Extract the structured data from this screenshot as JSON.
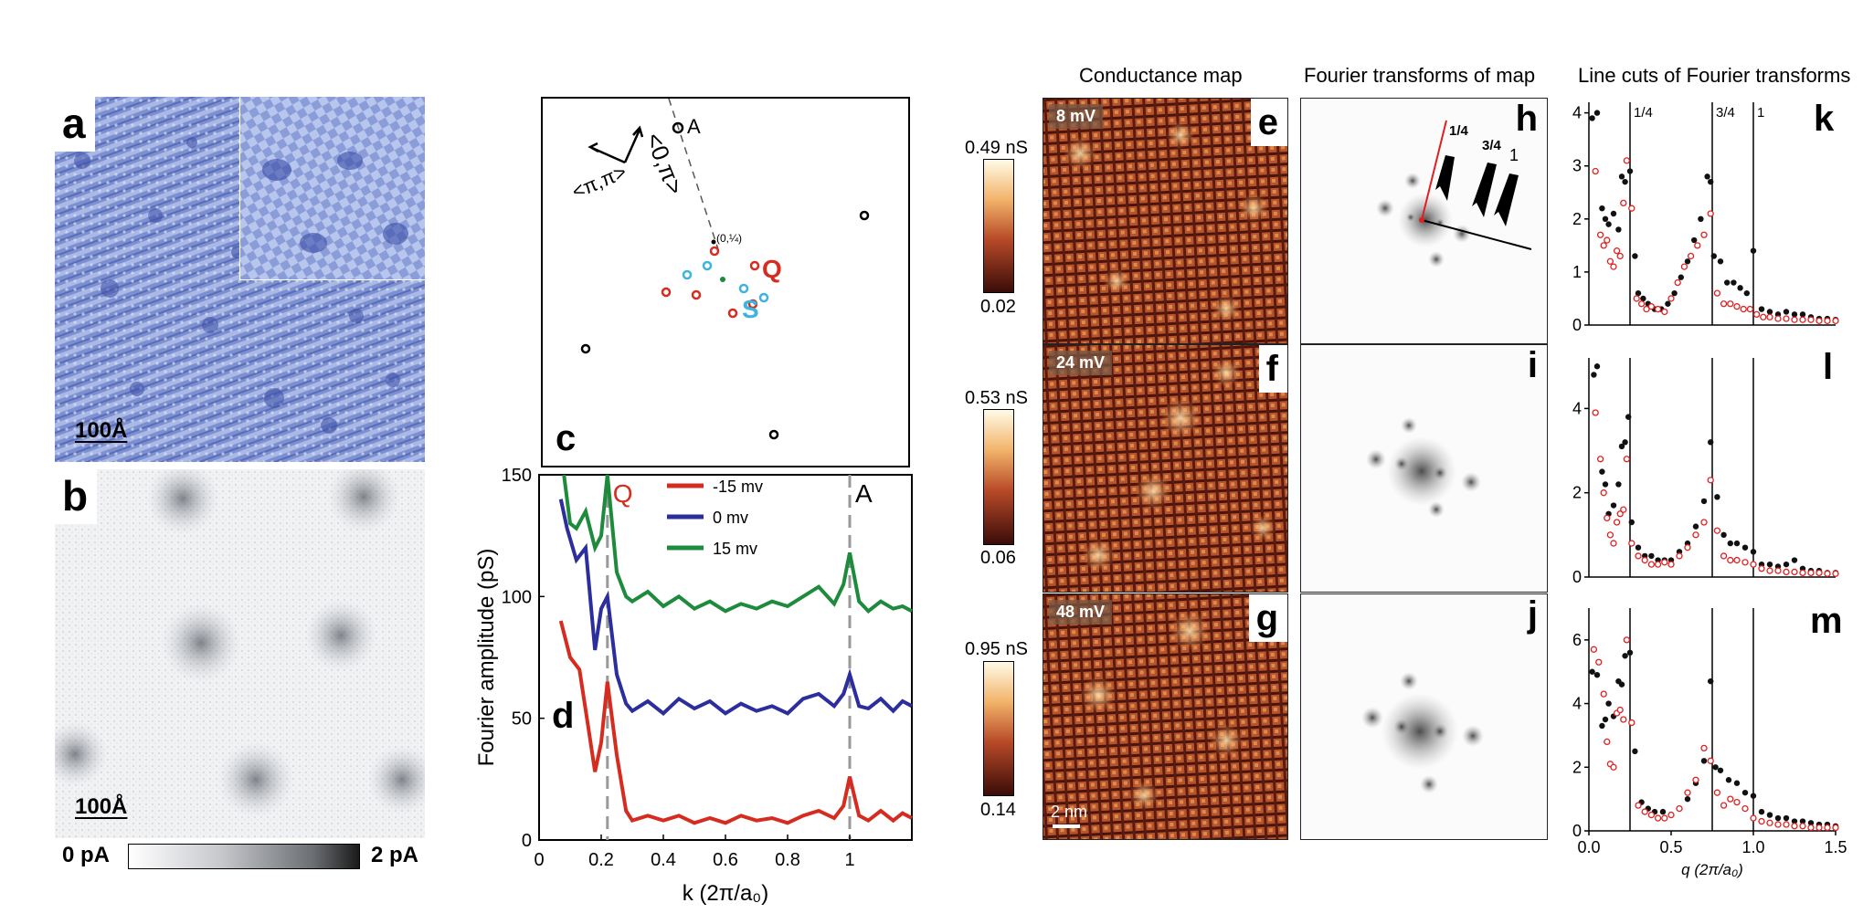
{
  "panels": {
    "a": {
      "label": "a",
      "scalebar": "100Å"
    },
    "b": {
      "label": "b",
      "scalebar": "100Å",
      "colorbar_min": "0 pA",
      "colorbar_max": "2 pA"
    },
    "c": {
      "label": "c",
      "point_A": "A",
      "point_q": "(0,¼)",
      "Q": "Q",
      "S": "S",
      "dir1": "<0,π>",
      "dir2": "<π,π>"
    },
    "d": {
      "label": "d",
      "marker_Q": "Q",
      "marker_A": "A"
    },
    "e": {
      "label": "e",
      "energy": "8 mV",
      "scalebar": ""
    },
    "f": {
      "label": "f",
      "energy": "24 mV"
    },
    "g": {
      "label": "g",
      "energy": "48 mV",
      "scalebar": "2 nm"
    },
    "h": {
      "label": "h",
      "q1": "1",
      "q34": "3/4",
      "q14": "1/4"
    },
    "i": {
      "label": "i"
    },
    "j": {
      "label": "j"
    },
    "k": {
      "label": "k"
    },
    "l": {
      "label": "l"
    },
    "m": {
      "label": "m"
    }
  },
  "titles": {
    "conductance": "Conductance map",
    "fourier": "Fourier transforms of map",
    "linecuts": "Line cuts of Fourier transforms"
  },
  "colorbars": [
    {
      "max": "0.49 nS",
      "min": "0.02"
    },
    {
      "max": "0.53 nS",
      "min": "0.06"
    },
    {
      "max": "0.95 nS",
      "min": "0.14"
    }
  ],
  "chart_data": [
    {
      "type": "line",
      "panel": "d",
      "xlabel": "k (2π/a₀)",
      "ylabel": "Fourier amplitude (pS)",
      "xlim": [
        0,
        1.2
      ],
      "ylim": [
        0,
        150
      ],
      "xticks": [
        "0",
        "0.2",
        "0.4",
        "0.6",
        "0.8",
        "1"
      ],
      "xtick_values": [
        0,
        0.2,
        0.4,
        0.6,
        0.8,
        1.0
      ],
      "yticks": [
        "0",
        "50",
        "100",
        "150"
      ],
      "ytick_values": [
        0,
        50,
        100,
        150
      ],
      "markers": [
        {
          "x": 0.22,
          "label": "Q"
        },
        {
          "x": 1.0,
          "label": "A"
        }
      ],
      "series": [
        {
          "name": "-15 mv",
          "color": "#d62c20",
          "x": [
            0.07,
            0.1,
            0.13,
            0.16,
            0.18,
            0.2,
            0.22,
            0.25,
            0.28,
            0.3,
            0.35,
            0.4,
            0.45,
            0.5,
            0.55,
            0.6,
            0.65,
            0.7,
            0.75,
            0.8,
            0.85,
            0.9,
            0.95,
            0.98,
            1.0,
            1.03,
            1.06,
            1.1,
            1.14,
            1.17,
            1.2
          ],
          "y": [
            90,
            75,
            70,
            45,
            28,
            40,
            65,
            35,
            12,
            8,
            10,
            8,
            10,
            7,
            9,
            7,
            10,
            8,
            9,
            7,
            10,
            12,
            9,
            14,
            26,
            10,
            8,
            12,
            8,
            11,
            9
          ]
        },
        {
          "name": "0 mv",
          "color": "#2b2e9c",
          "x": [
            0.07,
            0.09,
            0.12,
            0.15,
            0.18,
            0.2,
            0.22,
            0.25,
            0.28,
            0.3,
            0.35,
            0.4,
            0.45,
            0.5,
            0.55,
            0.6,
            0.65,
            0.7,
            0.75,
            0.8,
            0.85,
            0.9,
            0.95,
            0.98,
            1.0,
            1.03,
            1.06,
            1.1,
            1.14,
            1.17,
            1.2
          ],
          "y": [
            140,
            128,
            115,
            120,
            78,
            95,
            100,
            68,
            56,
            53,
            57,
            52,
            58,
            54,
            57,
            52,
            56,
            53,
            55,
            52,
            58,
            60,
            55,
            60,
            68,
            55,
            54,
            58,
            53,
            57,
            55
          ]
        },
        {
          "name": "15 mv",
          "color": "#1e8a3c",
          "x": [
            0.08,
            0.1,
            0.12,
            0.15,
            0.18,
            0.2,
            0.22,
            0.25,
            0.28,
            0.3,
            0.35,
            0.4,
            0.45,
            0.5,
            0.55,
            0.6,
            0.65,
            0.7,
            0.75,
            0.8,
            0.85,
            0.9,
            0.95,
            0.98,
            1.0,
            1.03,
            1.06,
            1.1,
            1.14,
            1.17,
            1.2
          ],
          "y": [
            150,
            130,
            128,
            135,
            120,
            125,
            150,
            110,
            100,
            98,
            102,
            96,
            100,
            95,
            98,
            94,
            97,
            95,
            98,
            96,
            100,
            104,
            97,
            105,
            118,
            98,
            94,
            98,
            95,
            96,
            94
          ]
        }
      ]
    },
    {
      "type": "scatter",
      "panel": "k",
      "xlim": [
        0,
        1.5
      ],
      "ylim": [
        0,
        4.2
      ],
      "yticks": [
        "0",
        "1",
        "2",
        "3",
        "4"
      ],
      "ytick_values": [
        0,
        1,
        2,
        3,
        4
      ],
      "vlines": [
        {
          "x": 0.25,
          "label": "1/4"
        },
        {
          "x": 0.75,
          "label": "3/4"
        },
        {
          "x": 1.0,
          "label": "1"
        }
      ],
      "series": [
        {
          "name": "black",
          "color": "#111111",
          "x": [
            0.02,
            0.05,
            0.08,
            0.1,
            0.12,
            0.15,
            0.18,
            0.2,
            0.22,
            0.25,
            0.28,
            0.3,
            0.33,
            0.36,
            0.4,
            0.44,
            0.48,
            0.52,
            0.56,
            0.6,
            0.64,
            0.68,
            0.72,
            0.74,
            0.76,
            0.8,
            0.84,
            0.88,
            0.92,
            0.96,
            1.0,
            1.05,
            1.1,
            1.15,
            1.2,
            1.25,
            1.3,
            1.35,
            1.4,
            1.45,
            1.5
          ],
          "y": [
            3.9,
            4.0,
            2.2,
            2.0,
            1.9,
            2.1,
            1.8,
            2.8,
            2.7,
            2.9,
            1.3,
            0.6,
            0.5,
            0.4,
            0.3,
            0.3,
            0.4,
            0.6,
            0.9,
            1.2,
            1.6,
            2.0,
            2.8,
            2.7,
            1.3,
            1.2,
            0.8,
            0.8,
            0.7,
            0.6,
            1.4,
            0.3,
            0.25,
            0.2,
            0.25,
            0.2,
            0.2,
            0.15,
            0.12,
            0.12,
            0.1
          ]
        },
        {
          "name": "red",
          "color": "#e02020",
          "x": [
            0.04,
            0.07,
            0.09,
            0.11,
            0.13,
            0.15,
            0.17,
            0.19,
            0.21,
            0.23,
            0.26,
            0.29,
            0.32,
            0.35,
            0.38,
            0.42,
            0.46,
            0.5,
            0.54,
            0.58,
            0.62,
            0.66,
            0.7,
            0.74,
            0.78,
            0.82,
            0.86,
            0.9,
            0.94,
            0.98,
            1.02,
            1.06,
            1.1,
            1.15,
            1.2,
            1.25,
            1.3,
            1.35,
            1.4,
            1.45,
            1.5
          ],
          "y": [
            2.9,
            1.7,
            1.5,
            1.6,
            1.2,
            1.1,
            1.4,
            1.3,
            2.3,
            3.1,
            2.2,
            0.5,
            0.4,
            0.3,
            0.35,
            0.3,
            0.25,
            0.5,
            0.8,
            1.1,
            1.3,
            1.5,
            1.7,
            2.1,
            0.6,
            0.4,
            0.4,
            0.35,
            0.3,
            0.3,
            0.2,
            0.15,
            0.15,
            0.12,
            0.12,
            0.1,
            0.1,
            0.1,
            0.08,
            0.08,
            0.08
          ]
        }
      ]
    },
    {
      "type": "scatter",
      "panel": "l",
      "xlim": [
        0,
        1.5
      ],
      "ylim": [
        0,
        5.2
      ],
      "yticks": [
        "0",
        "2",
        "4"
      ],
      "ytick_values": [
        0,
        2,
        4
      ],
      "vlines": [
        {
          "x": 0.25
        },
        {
          "x": 0.75
        },
        {
          "x": 1.0
        }
      ],
      "series": [
        {
          "name": "black",
          "color": "#111111",
          "x": [
            0.03,
            0.05,
            0.08,
            0.1,
            0.12,
            0.15,
            0.18,
            0.2,
            0.22,
            0.24,
            0.26,
            0.3,
            0.34,
            0.38,
            0.42,
            0.46,
            0.5,
            0.55,
            0.6,
            0.65,
            0.7,
            0.74,
            0.78,
            0.82,
            0.86,
            0.9,
            0.95,
            1.0,
            1.05,
            1.1,
            1.15,
            1.2,
            1.25,
            1.3,
            1.35,
            1.4,
            1.45,
            1.5
          ],
          "y": [
            4.8,
            5.0,
            2.5,
            2.2,
            1.5,
            1.7,
            2.2,
            3.1,
            3.2,
            3.8,
            1.3,
            0.7,
            0.5,
            0.5,
            0.4,
            0.4,
            0.4,
            0.6,
            0.8,
            1.2,
            1.8,
            3.2,
            1.9,
            1.0,
            0.8,
            0.8,
            0.7,
            0.6,
            0.3,
            0.3,
            0.25,
            0.3,
            0.4,
            0.2,
            0.15,
            0.15,
            0.1,
            0.1
          ]
        },
        {
          "name": "red",
          "color": "#e02020",
          "x": [
            0.04,
            0.07,
            0.09,
            0.11,
            0.13,
            0.15,
            0.17,
            0.19,
            0.21,
            0.23,
            0.26,
            0.3,
            0.34,
            0.38,
            0.42,
            0.46,
            0.5,
            0.55,
            0.6,
            0.65,
            0.7,
            0.74,
            0.78,
            0.82,
            0.86,
            0.9,
            0.95,
            1.0,
            1.05,
            1.1,
            1.15,
            1.2,
            1.25,
            1.3,
            1.35,
            1.4,
            1.45,
            1.5
          ],
          "y": [
            3.9,
            2.8,
            2.0,
            1.4,
            1.0,
            0.8,
            1.3,
            1.5,
            1.6,
            2.8,
            0.8,
            0.5,
            0.4,
            0.3,
            0.3,
            0.35,
            0.3,
            0.5,
            0.7,
            1.0,
            1.3,
            2.3,
            1.1,
            0.5,
            0.4,
            0.4,
            0.35,
            0.3,
            0.2,
            0.15,
            0.15,
            0.12,
            0.12,
            0.1,
            0.1,
            0.1,
            0.08,
            0.08
          ]
        }
      ]
    },
    {
      "type": "scatter",
      "panel": "m",
      "xlim": [
        0,
        1.5
      ],
      "ylim": [
        0,
        7
      ],
      "xlabel": "q (2π/a₀)",
      "xticks": [
        "0.0",
        "0.5",
        "1.0",
        "1.5"
      ],
      "xtick_values": [
        0,
        0.5,
        1.0,
        1.5
      ],
      "yticks": [
        "0",
        "2",
        "4",
        "6"
      ],
      "ytick_values": [
        0,
        2,
        4,
        6
      ],
      "vlines": [
        {
          "x": 0.25
        },
        {
          "x": 0.75
        },
        {
          "x": 1.0
        }
      ],
      "series": [
        {
          "name": "black",
          "color": "#111111",
          "x": [
            0.02,
            0.05,
            0.08,
            0.1,
            0.12,
            0.15,
            0.18,
            0.2,
            0.22,
            0.25,
            0.28,
            0.32,
            0.36,
            0.4,
            0.45,
            0.5,
            0.55,
            0.6,
            0.65,
            0.7,
            0.74,
            0.77,
            0.8,
            0.85,
            0.9,
            0.95,
            1.0,
            1.05,
            1.1,
            1.15,
            1.2,
            1.25,
            1.3,
            1.35,
            1.4,
            1.45,
            1.5
          ],
          "y": [
            5.0,
            4.9,
            3.3,
            3.5,
            4.0,
            3.6,
            4.7,
            4.6,
            5.5,
            5.6,
            2.5,
            0.9,
            0.7,
            0.6,
            0.6,
            0.5,
            0.7,
            1.0,
            1.5,
            2.2,
            4.7,
            2.0,
            1.9,
            1.6,
            1.5,
            1.2,
            1.1,
            0.6,
            0.5,
            0.4,
            0.4,
            0.3,
            0.3,
            0.25,
            0.2,
            0.2,
            0.15
          ]
        },
        {
          "name": "red",
          "color": "#e02020",
          "x": [
            0.03,
            0.06,
            0.09,
            0.11,
            0.13,
            0.15,
            0.17,
            0.19,
            0.21,
            0.23,
            0.26,
            0.3,
            0.34,
            0.38,
            0.42,
            0.46,
            0.5,
            0.55,
            0.6,
            0.65,
            0.7,
            0.74,
            0.78,
            0.82,
            0.86,
            0.9,
            0.95,
            1.0,
            1.05,
            1.1,
            1.15,
            1.2,
            1.25,
            1.3,
            1.35,
            1.4,
            1.45,
            1.5
          ],
          "y": [
            5.7,
            5.3,
            4.3,
            2.8,
            2.1,
            2.0,
            3.7,
            3.8,
            3.5,
            6.0,
            3.4,
            0.8,
            0.6,
            0.5,
            0.4,
            0.4,
            0.5,
            0.7,
            1.2,
            1.6,
            2.6,
            2.2,
            1.2,
            0.8,
            1.0,
            0.9,
            0.7,
            0.4,
            0.3,
            0.25,
            0.2,
            0.2,
            0.15,
            0.15,
            0.1,
            0.1,
            0.1,
            0.1
          ]
        }
      ]
    }
  ]
}
